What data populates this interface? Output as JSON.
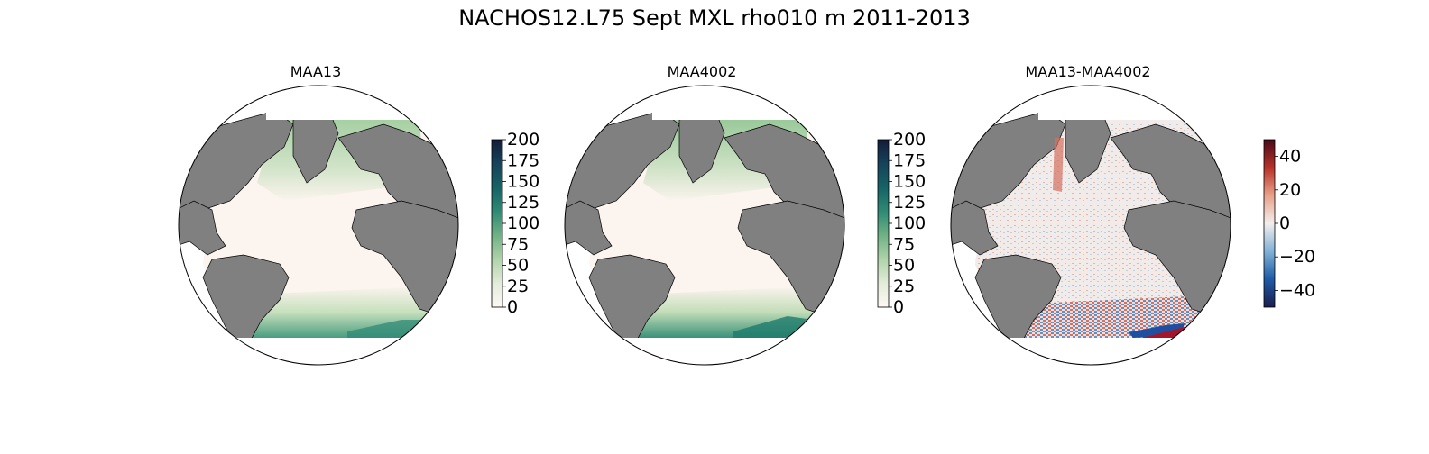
{
  "title": "NACHOS12.L75 Sept MXL rho010 m 2011-2013",
  "panels": [
    {
      "title": "MAA13",
      "colorbar": {
        "ticks": [
          "0",
          "25",
          "50",
          "75",
          "100",
          "125",
          "150",
          "175",
          "200"
        ],
        "range": [
          0,
          200
        ],
        "colormap": [
          "#fdf8f4",
          "#e3ecda",
          "#b2d4ac",
          "#6fb184",
          "#2f8a75",
          "#166466",
          "#15425a",
          "#131c39"
        ]
      }
    },
    {
      "title": "MAA4002",
      "colorbar": {
        "ticks": [
          "0",
          "25",
          "50",
          "75",
          "100",
          "125",
          "150",
          "175",
          "200"
        ],
        "range": [
          0,
          200
        ],
        "colormap": [
          "#fdf8f4",
          "#e3ecda",
          "#b2d4ac",
          "#6fb184",
          "#2f8a75",
          "#166466",
          "#15425a",
          "#131c39"
        ]
      }
    },
    {
      "title": "MAA13-MAA4002",
      "colorbar": {
        "ticks": [
          "40",
          "20",
          "0",
          "−20",
          "−40"
        ],
        "range": [
          -50,
          50
        ],
        "colormap": [
          "#1a1f4e",
          "#1f5ca8",
          "#7fb0d6",
          "#f2eeec",
          "#e8a088",
          "#b8332a",
          "#4a0a1a"
        ]
      }
    }
  ],
  "colors": {
    "land": "#808080",
    "coast": "#000000"
  }
}
